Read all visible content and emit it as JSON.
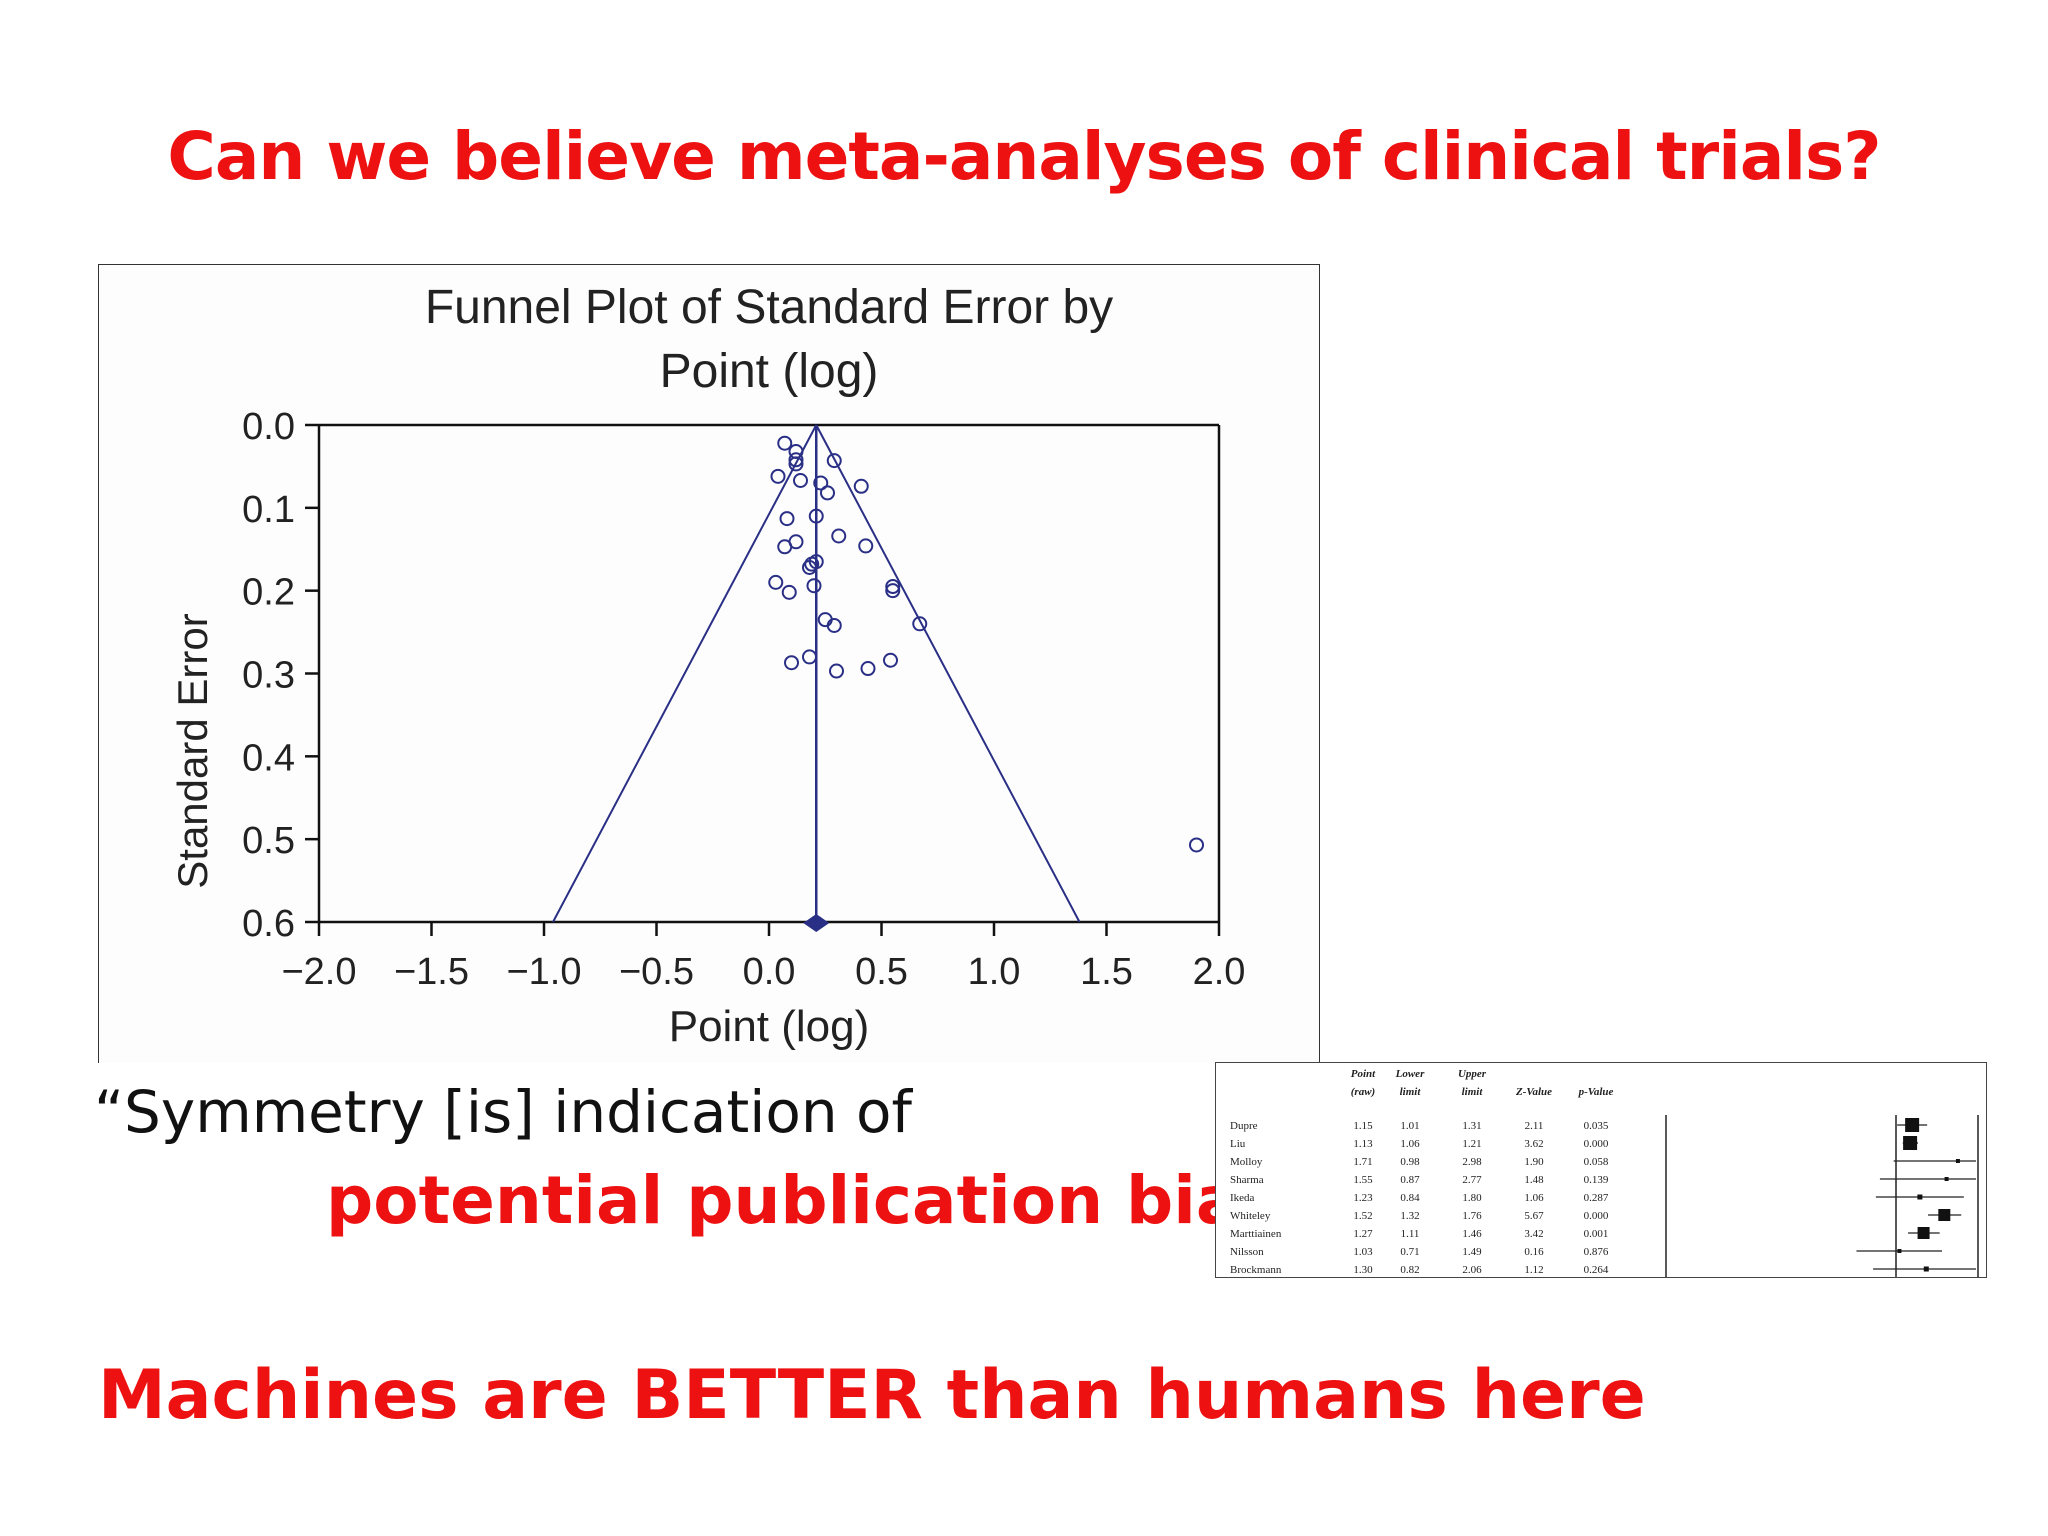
{
  "slide": {
    "title": "Can we believe meta-analyses of clinical trials?",
    "quote_line1": "“Symmetry [is] indication of",
    "quote_line2": "potential publication bias”",
    "bottom_claim": "Machines are BETTER than humans here"
  },
  "colors": {
    "accent_red": "#ee1111",
    "plot_navy": "#2a2f86",
    "axis_black": "#111111"
  },
  "chart_data": [
    {
      "type": "scatter",
      "title_line1": "Funnel Plot of Standard Error by",
      "title_line2": "Point (log)",
      "xlabel": "Point (log)",
      "ylabel": "Standard Error",
      "xlim": [
        -2.0,
        2.0
      ],
      "ylim": [
        0.0,
        0.6
      ],
      "y_inverted": true,
      "xticks": [
        "−2.0",
        "−1.5",
        "−1.0",
        "−0.5",
        "0.0",
        "0.5",
        "1.0",
        "1.5",
        "2.0"
      ],
      "yticks": [
        "0.0",
        "0.1",
        "0.2",
        "0.3",
        "0.4",
        "0.5",
        "0.6"
      ],
      "pooled_estimate": 0.21,
      "funnel_base": [
        -0.96,
        1.38
      ],
      "points": [
        {
          "x": 0.07,
          "y": 0.022
        },
        {
          "x": 0.12,
          "y": 0.032
        },
        {
          "x": 0.12,
          "y": 0.042
        },
        {
          "x": 0.12,
          "y": 0.047
        },
        {
          "x": 0.29,
          "y": 0.043
        },
        {
          "x": 0.04,
          "y": 0.062
        },
        {
          "x": 0.14,
          "y": 0.067
        },
        {
          "x": 0.23,
          "y": 0.07
        },
        {
          "x": 0.26,
          "y": 0.082
        },
        {
          "x": 0.41,
          "y": 0.074
        },
        {
          "x": 0.21,
          "y": 0.11
        },
        {
          "x": 0.08,
          "y": 0.113
        },
        {
          "x": 0.12,
          "y": 0.141
        },
        {
          "x": 0.07,
          "y": 0.147
        },
        {
          "x": 0.31,
          "y": 0.134
        },
        {
          "x": 0.43,
          "y": 0.146
        },
        {
          "x": 0.19,
          "y": 0.168
        },
        {
          "x": 0.18,
          "y": 0.172
        },
        {
          "x": 0.21,
          "y": 0.165
        },
        {
          "x": 0.03,
          "y": 0.19
        },
        {
          "x": 0.09,
          "y": 0.202
        },
        {
          "x": 0.2,
          "y": 0.194
        },
        {
          "x": 0.55,
          "y": 0.195
        },
        {
          "x": 0.55,
          "y": 0.2
        },
        {
          "x": 0.25,
          "y": 0.235
        },
        {
          "x": 0.29,
          "y": 0.242
        },
        {
          "x": 0.67,
          "y": 0.24
        },
        {
          "x": 0.18,
          "y": 0.28
        },
        {
          "x": 0.1,
          "y": 0.287
        },
        {
          "x": 0.3,
          "y": 0.297
        },
        {
          "x": 0.44,
          "y": 0.294
        },
        {
          "x": 0.54,
          "y": 0.284
        },
        {
          "x": 1.9,
          "y": 0.507
        }
      ]
    },
    {
      "type": "table",
      "columns": [
        "Point (raw)",
        "Lower limit",
        "Upper limit",
        "Z-Value",
        "p-Value"
      ],
      "rows": [
        {
          "study": "Dupre",
          "point": "1.15",
          "lower": "1.01",
          "upper": "1.31",
          "z": "2.11",
          "p": "0.035"
        },
        {
          "study": "Liu",
          "point": "1.13",
          "lower": "1.06",
          "upper": "1.21",
          "z": "3.62",
          "p": "0.000"
        },
        {
          "study": "Molloy",
          "point": "1.71",
          "lower": "0.98",
          "upper": "2.98",
          "z": "1.90",
          "p": "0.058"
        },
        {
          "study": "Sharma",
          "point": "1.55",
          "lower": "0.87",
          "upper": "2.77",
          "z": "1.48",
          "p": "0.139"
        },
        {
          "study": "Ikeda",
          "point": "1.23",
          "lower": "0.84",
          "upper": "1.80",
          "z": "1.06",
          "p": "0.287"
        },
        {
          "study": "Whiteley",
          "point": "1.52",
          "lower": "1.32",
          "upper": "1.76",
          "z": "5.67",
          "p": "0.000"
        },
        {
          "study": "Marttiainen",
          "point": "1.27",
          "lower": "1.11",
          "upper": "1.46",
          "z": "3.42",
          "p": "0.001"
        },
        {
          "study": "Nilsson",
          "point": "1.03",
          "lower": "0.71",
          "upper": "1.49",
          "z": "0.16",
          "p": "0.876"
        },
        {
          "study": "Brockmann",
          "point": "1.30",
          "lower": "0.82",
          "upper": "2.06",
          "z": "1.12",
          "p": "0.264"
        }
      ],
      "forest_null": 1.0,
      "forest_xlim": [
        0.5,
        2.0
      ],
      "forest_marker_sizes": [
        14,
        14,
        4,
        4,
        5,
        12,
        12,
        4,
        5
      ]
    }
  ]
}
